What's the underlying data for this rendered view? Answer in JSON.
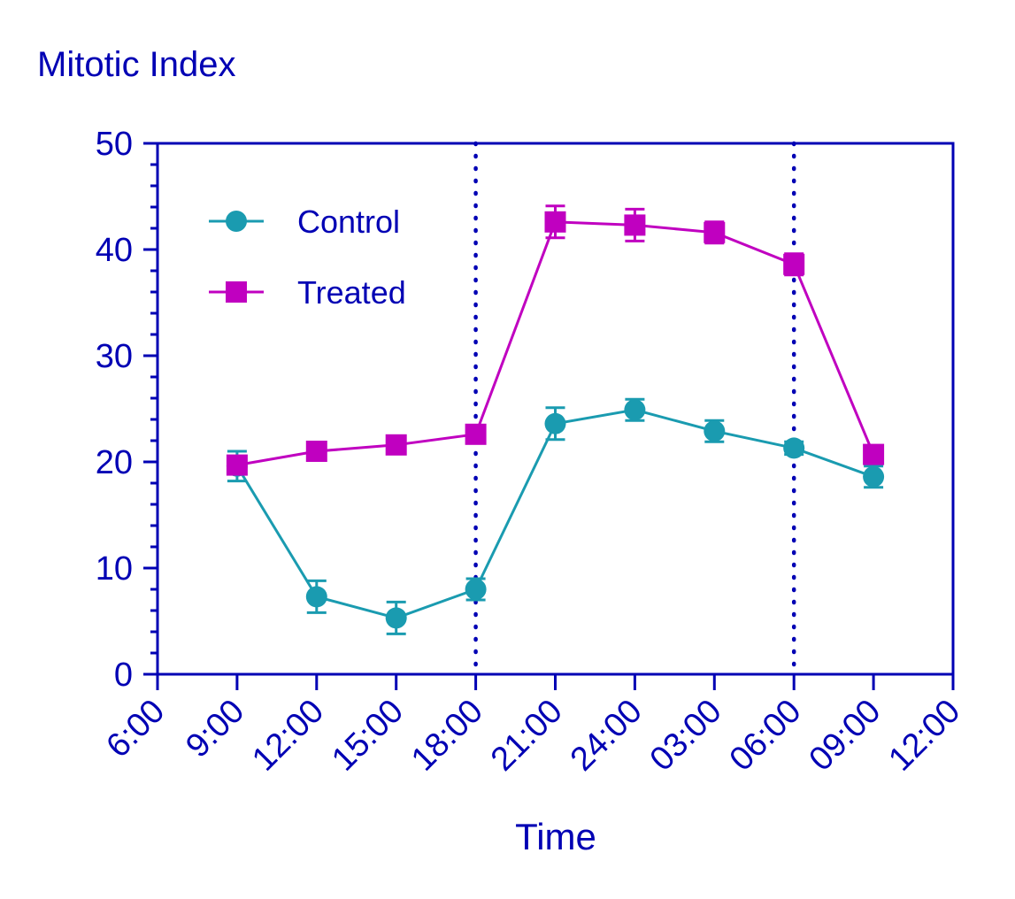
{
  "chart_data": {
    "type": "line",
    "title": "Mitotic Index",
    "xlabel": "Time",
    "ylabel": "",
    "ylim": [
      0,
      50
    ],
    "y_ticks": [
      "0",
      "10",
      "20",
      "30",
      "40",
      "50"
    ],
    "x_tick_labels": [
      "6:00",
      "9:00",
      "12:00",
      "15:00",
      "18:00",
      "21:00",
      "24:00",
      "03:00",
      "06:00",
      "09:00",
      "12:00"
    ],
    "x": [
      "9:00",
      "12:00",
      "15:00",
      "18:00",
      "21:00",
      "24:00",
      "03:00",
      "06:00",
      "09:00"
    ],
    "vertical_reference_lines": [
      "18:00",
      "06:00"
    ],
    "grid": false,
    "legend_position": "top-left",
    "series": [
      {
        "name": "Control",
        "marker": "circle",
        "color": "#1a9bb0",
        "values": [
          19.6,
          7.3,
          5.3,
          8.0,
          23.6,
          24.9,
          22.9,
          21.3,
          18.6
        ],
        "errors": [
          1.4,
          1.5,
          1.5,
          1.0,
          1.5,
          1.0,
          1.0,
          0.6,
          1.0
        ]
      },
      {
        "name": "Treated",
        "marker": "square",
        "color": "#c000c0",
        "values": [
          19.7,
          21.0,
          21.6,
          22.6,
          42.6,
          42.3,
          41.6,
          38.6,
          20.7
        ],
        "errors": [
          0.8,
          0.6,
          0.6,
          0.6,
          1.5,
          1.5,
          1.0,
          1.0,
          0.8
        ]
      }
    ],
    "colors": {
      "axis": "#0000b4",
      "text": "#0000b4"
    }
  }
}
